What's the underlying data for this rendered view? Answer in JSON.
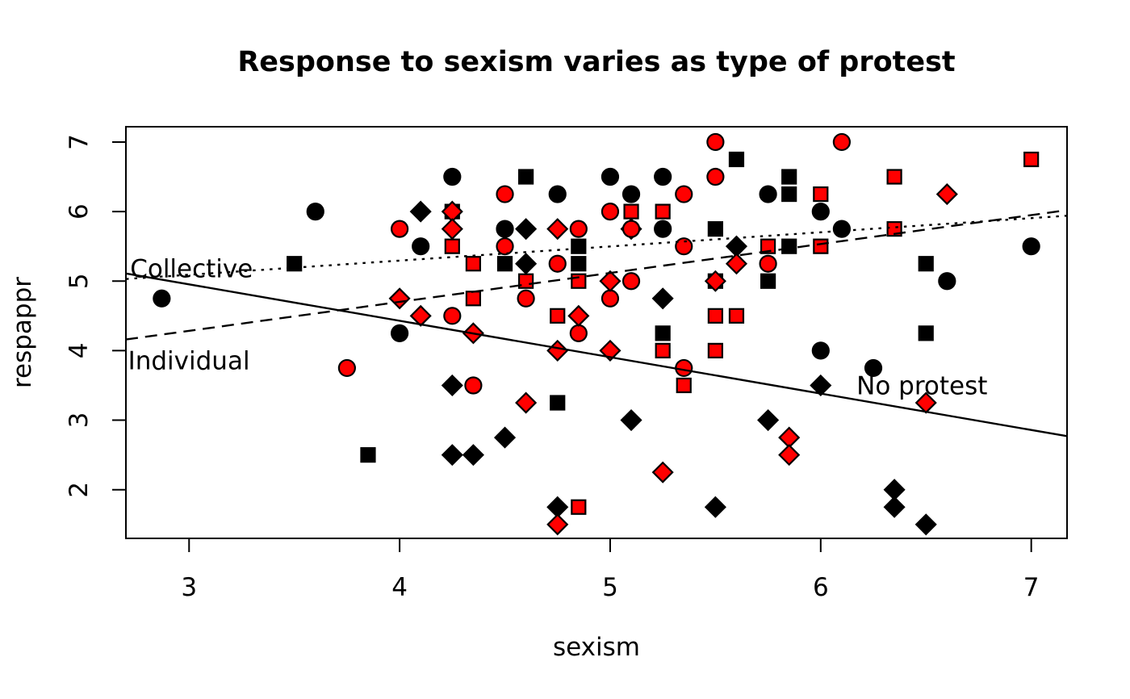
{
  "chart_data": {
    "type": "scatter",
    "title": "Response to sexism varies as type of protest",
    "xlabel": "sexism",
    "ylabel": "respappr",
    "xlim": [
      2.7,
      7.17
    ],
    "ylim": [
      1.3,
      7.22
    ],
    "x_ticks": [
      3,
      4,
      5,
      6,
      7
    ],
    "y_ticks": [
      2,
      3,
      4,
      5,
      6,
      7
    ],
    "grid": false,
    "legend": "none (labels drawn on lines)",
    "colors": {
      "black": "#000000",
      "red": "#ff0000",
      "axis": "#000000",
      "background": "#ffffff"
    },
    "series": [
      {
        "name": "black-circle",
        "shape": "circle",
        "color": "#000000",
        "points": [
          [
            2.87,
            4.75
          ],
          [
            3.6,
            6.0
          ],
          [
            4.0,
            4.25
          ],
          [
            4.1,
            5.5
          ],
          [
            4.25,
            6.5
          ],
          [
            4.5,
            5.75
          ],
          [
            4.75,
            6.25
          ],
          [
            5.0,
            6.5
          ],
          [
            5.1,
            6.25
          ],
          [
            5.25,
            6.5
          ],
          [
            5.25,
            5.75
          ],
          [
            5.75,
            6.25
          ],
          [
            6.0,
            6.0
          ],
          [
            6.1,
            5.75
          ],
          [
            6.0,
            4.0
          ],
          [
            6.25,
            3.75
          ],
          [
            6.6,
            5.0
          ],
          [
            7.0,
            5.5
          ]
        ]
      },
      {
        "name": "black-square",
        "shape": "square",
        "color": "#000000",
        "points": [
          [
            3.5,
            5.25
          ],
          [
            3.85,
            2.5
          ],
          [
            4.25,
            6.0
          ],
          [
            4.5,
            5.25
          ],
          [
            4.6,
            6.5
          ],
          [
            4.75,
            3.25
          ],
          [
            4.85,
            5.5
          ],
          [
            4.85,
            5.25
          ],
          [
            5.25,
            4.25
          ],
          [
            5.5,
            5.75
          ],
          [
            5.5,
            5.0
          ],
          [
            5.6,
            6.75
          ],
          [
            5.75,
            5.0
          ],
          [
            5.85,
            6.5
          ],
          [
            5.85,
            6.25
          ],
          [
            5.85,
            5.5
          ],
          [
            6.5,
            5.25
          ],
          [
            6.5,
            4.25
          ]
        ]
      },
      {
        "name": "black-diamond",
        "shape": "diamond",
        "color": "#000000",
        "points": [
          [
            4.1,
            6.0
          ],
          [
            4.25,
            3.5
          ],
          [
            4.25,
            2.5
          ],
          [
            4.35,
            2.5
          ],
          [
            4.5,
            2.75
          ],
          [
            4.6,
            5.75
          ],
          [
            4.6,
            5.25
          ],
          [
            4.75,
            1.75
          ],
          [
            5.1,
            5.75
          ],
          [
            5.1,
            3.0
          ],
          [
            5.25,
            4.75
          ],
          [
            5.5,
            1.75
          ],
          [
            5.6,
            5.5
          ],
          [
            5.75,
            3.0
          ],
          [
            6.0,
            3.5
          ],
          [
            6.35,
            2.0
          ],
          [
            6.35,
            1.75
          ],
          [
            6.5,
            1.5
          ]
        ]
      },
      {
        "name": "red-circle",
        "shape": "circle",
        "color": "#ff0000",
        "points": [
          [
            3.75,
            3.75
          ],
          [
            4.0,
            5.75
          ],
          [
            4.25,
            4.5
          ],
          [
            4.35,
            3.5
          ],
          [
            4.5,
            6.25
          ],
          [
            4.5,
            5.5
          ],
          [
            4.6,
            4.75
          ],
          [
            4.75,
            5.25
          ],
          [
            4.85,
            5.75
          ],
          [
            4.85,
            4.25
          ],
          [
            5.0,
            6.0
          ],
          [
            5.0,
            4.75
          ],
          [
            5.1,
            5.75
          ],
          [
            5.1,
            5.0
          ],
          [
            5.35,
            6.25
          ],
          [
            5.35,
            5.5
          ],
          [
            5.35,
            3.75
          ],
          [
            5.5,
            7.0
          ],
          [
            5.5,
            6.5
          ],
          [
            5.75,
            5.25
          ],
          [
            6.1,
            7.0
          ]
        ]
      },
      {
        "name": "red-square",
        "shape": "square",
        "color": "#ff0000",
        "points": [
          [
            4.25,
            5.5
          ],
          [
            4.35,
            5.25
          ],
          [
            4.35,
            4.75
          ],
          [
            4.6,
            5.0
          ],
          [
            4.75,
            4.5
          ],
          [
            4.85,
            5.0
          ],
          [
            4.85,
            1.75
          ],
          [
            5.1,
            6.0
          ],
          [
            5.25,
            6.0
          ],
          [
            5.25,
            4.0
          ],
          [
            5.35,
            3.5
          ],
          [
            5.5,
            4.5
          ],
          [
            5.5,
            4.0
          ],
          [
            5.6,
            4.5
          ],
          [
            5.75,
            5.5
          ],
          [
            6.0,
            6.25
          ],
          [
            6.0,
            5.5
          ],
          [
            6.35,
            6.5
          ],
          [
            6.35,
            5.75
          ],
          [
            7.0,
            6.75
          ]
        ]
      },
      {
        "name": "red-diamond",
        "shape": "diamond",
        "color": "#ff0000",
        "points": [
          [
            4.0,
            4.75
          ],
          [
            4.1,
            4.5
          ],
          [
            4.25,
            6.0
          ],
          [
            4.25,
            5.75
          ],
          [
            4.35,
            4.25
          ],
          [
            4.6,
            3.25
          ],
          [
            4.75,
            5.75
          ],
          [
            4.75,
            4.0
          ],
          [
            4.75,
            1.5
          ],
          [
            4.85,
            4.5
          ],
          [
            5.0,
            5.0
          ],
          [
            5.0,
            4.0
          ],
          [
            5.25,
            2.25
          ],
          [
            5.5,
            5.0
          ],
          [
            5.6,
            5.25
          ],
          [
            5.85,
            2.75
          ],
          [
            5.85,
            2.5
          ],
          [
            6.5,
            3.25
          ],
          [
            6.6,
            6.25
          ]
        ]
      }
    ],
    "lines": [
      {
        "name": "collective-line",
        "label": "Collective",
        "style": "dotted",
        "x1": 2.7,
        "y1": 5.03,
        "x2": 7.17,
        "y2": 5.94
      },
      {
        "name": "individual-line",
        "label": "Individual",
        "style": "dashed",
        "x1": 2.7,
        "y1": 4.16,
        "x2": 7.17,
        "y2": 6.02
      },
      {
        "name": "no-protest-line",
        "label": "No protest",
        "style": "solid",
        "x1": 2.7,
        "y1": 5.11,
        "x2": 7.17,
        "y2": 2.77
      }
    ],
    "line_labels": [
      {
        "text": "Collective",
        "x": 2.72,
        "y": 5.18
      },
      {
        "text": "Individual",
        "x": 2.71,
        "y": 3.86
      },
      {
        "text": "No protest",
        "x": 6.17,
        "y": 3.5
      }
    ]
  }
}
